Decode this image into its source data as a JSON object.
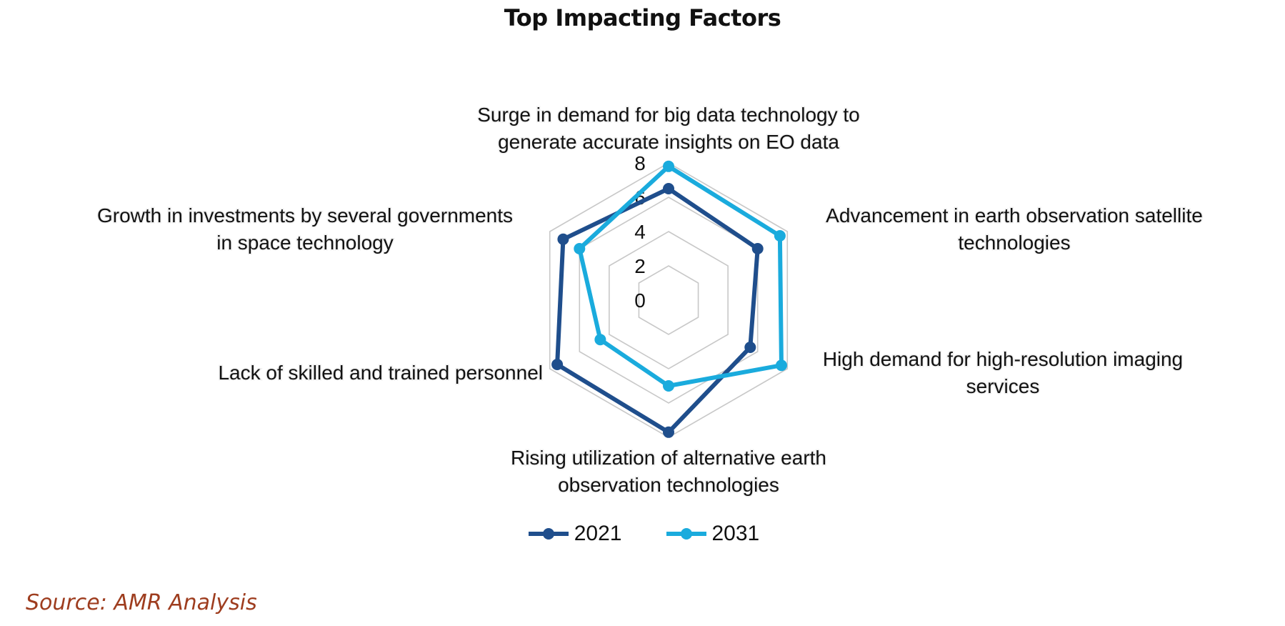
{
  "chart_data": {
    "type": "radar",
    "title": "Top Impacting Factors",
    "categories": [
      [
        "Surge in demand for big data technology to",
        "generate accurate insights on EO data"
      ],
      [
        "Advancement in earth observation satellite",
        "technologies"
      ],
      [
        "High demand for high-resolution imaging",
        "services"
      ],
      [
        "Rising utilization of alternative earth",
        "observation technologies"
      ],
      [
        "Lack of skilled and trained personnel"
      ],
      [
        "Growth in investments by several governments",
        "in space technology"
      ]
    ],
    "radial_ticks": [
      "0",
      "2",
      "4",
      "6",
      "8"
    ],
    "rlim": [
      0,
      8
    ],
    "grid": true,
    "legend_position": "bottom",
    "series": [
      {
        "name": "2021",
        "color": "#1f4e8c",
        "values": [
          6.5,
          6.0,
          5.5,
          7.7,
          7.5,
          7.1
        ]
      },
      {
        "name": "2031",
        "color": "#1aabdd",
        "values": [
          7.8,
          7.5,
          7.6,
          5.0,
          4.6,
          6.0
        ]
      }
    ]
  },
  "source_note": "Source: AMR Analysis"
}
